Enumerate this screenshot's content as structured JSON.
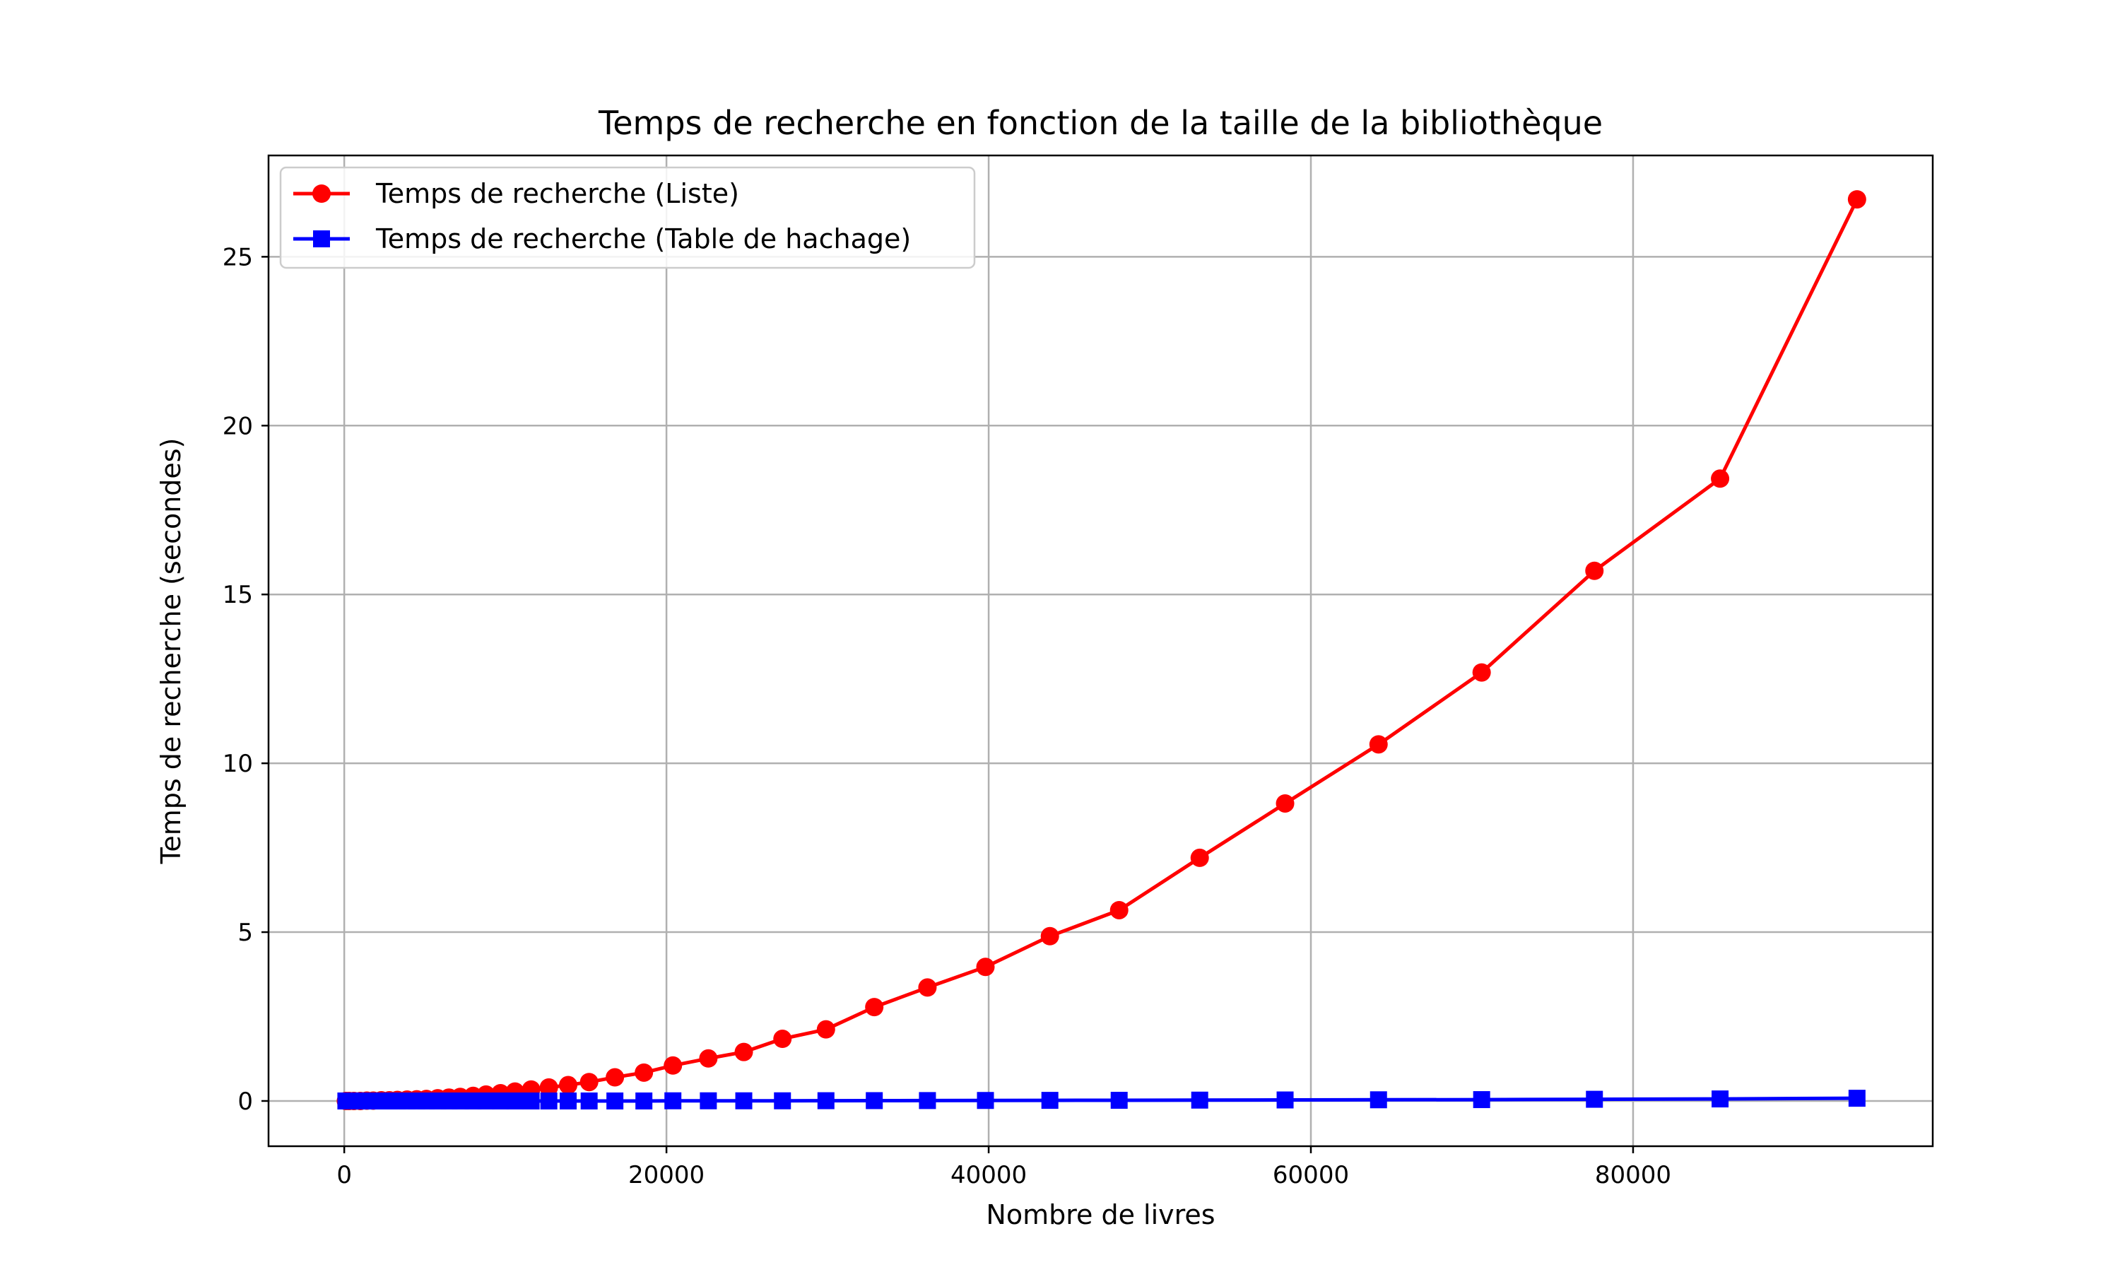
{
  "chart_data": {
    "type": "line",
    "title": "Temps de recherche en fonction de la taille de la bibliothèque",
    "xlabel": "Nombre de livres",
    "ylabel": "Temps de recherche (secondes)",
    "xlim": [
      -4700,
      98600
    ],
    "ylim": [
      -1.34,
      28.0
    ],
    "xticks": [
      0,
      20000,
      40000,
      60000,
      80000
    ],
    "yticks": [
      0,
      5,
      10,
      15,
      20,
      25
    ],
    "grid": true,
    "legend_position": "top-left",
    "series": [
      {
        "name": "Temps de recherche (Liste)",
        "color": "#ff0000",
        "marker": "circle",
        "x": [
          100,
          300,
          600,
          1000,
          1400,
          1800,
          2300,
          2800,
          3300,
          3900,
          4500,
          5100,
          5800,
          6500,
          7200,
          8000,
          8800,
          9700,
          10600,
          11600,
          12700,
          13900,
          15200,
          16800,
          18600,
          20400,
          22600,
          24800,
          27200,
          29900,
          32900,
          36200,
          39800,
          43800,
          48100,
          53100,
          58400,
          64200,
          70600,
          77600,
          85400,
          93900
        ],
        "y": [
          0.0,
          0.0,
          0.0,
          0.0,
          0.01,
          0.01,
          0.02,
          0.02,
          0.03,
          0.04,
          0.05,
          0.06,
          0.08,
          0.1,
          0.12,
          0.15,
          0.19,
          0.23,
          0.28,
          0.34,
          0.4,
          0.47,
          0.56,
          0.7,
          0.84,
          1.05,
          1.26,
          1.45,
          1.84,
          2.12,
          2.78,
          3.36,
          3.97,
          4.88,
          5.65,
          7.2,
          8.81,
          10.56,
          12.69,
          15.7,
          18.43,
          26.7
        ]
      },
      {
        "name": "Temps de recherche (Table de hachage)",
        "color": "#0000ff",
        "marker": "square",
        "x": [
          100,
          300,
          600,
          1000,
          1400,
          1800,
          2300,
          2800,
          3300,
          3900,
          4500,
          5100,
          5800,
          6500,
          7200,
          8000,
          8800,
          9700,
          10600,
          11600,
          12700,
          13900,
          15200,
          16800,
          18600,
          20400,
          22600,
          24800,
          27200,
          29900,
          32900,
          36200,
          39800,
          43800,
          48100,
          53100,
          58400,
          64200,
          70600,
          77600,
          85400,
          93900
        ],
        "y": [
          0.0,
          0.0,
          0.0,
          0.0,
          0.0,
          0.0,
          0.0,
          0.0,
          0.0,
          0.0,
          0.0,
          0.0,
          0.0,
          0.0,
          0.0,
          0.0,
          0.0,
          0.0,
          0.0,
          0.0,
          0.0,
          0.0,
          0.0,
          0.0,
          0.0,
          0.005,
          0.005,
          0.005,
          0.005,
          0.008,
          0.01,
          0.012,
          0.015,
          0.018,
          0.02,
          0.025,
          0.03,
          0.035,
          0.04,
          0.05,
          0.06,
          0.08
        ]
      }
    ]
  }
}
